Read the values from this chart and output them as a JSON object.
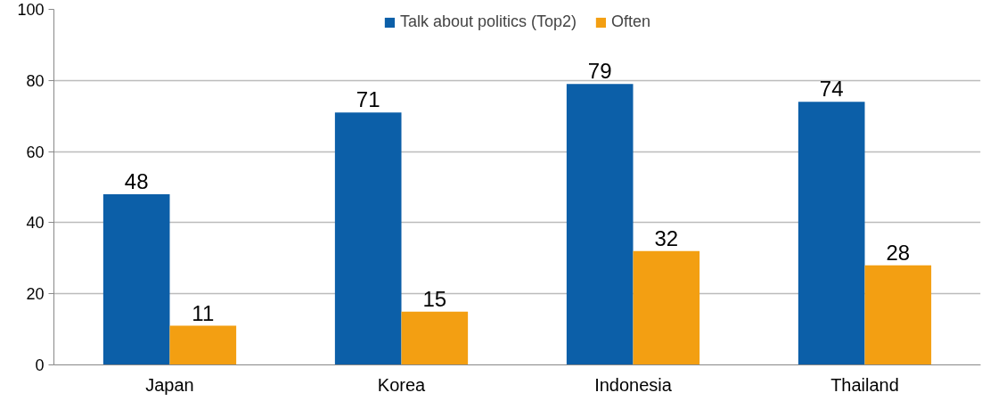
{
  "chart_data": {
    "type": "bar",
    "categories": [
      "Japan",
      "Korea",
      "Indonesia",
      "Thailand"
    ],
    "series": [
      {
        "name": "Talk about politics (Top2)",
        "color": "#0c5fa8",
        "values": [
          48,
          71,
          79,
          74
        ]
      },
      {
        "name": "Often",
        "color": "#f39f12",
        "values": [
          11,
          15,
          32,
          28
        ]
      }
    ],
    "ylim": [
      0,
      100
    ],
    "yticks": [
      0,
      20,
      40,
      60,
      80,
      100
    ],
    "grid": "y",
    "legend": "top",
    "data_labels": true
  }
}
